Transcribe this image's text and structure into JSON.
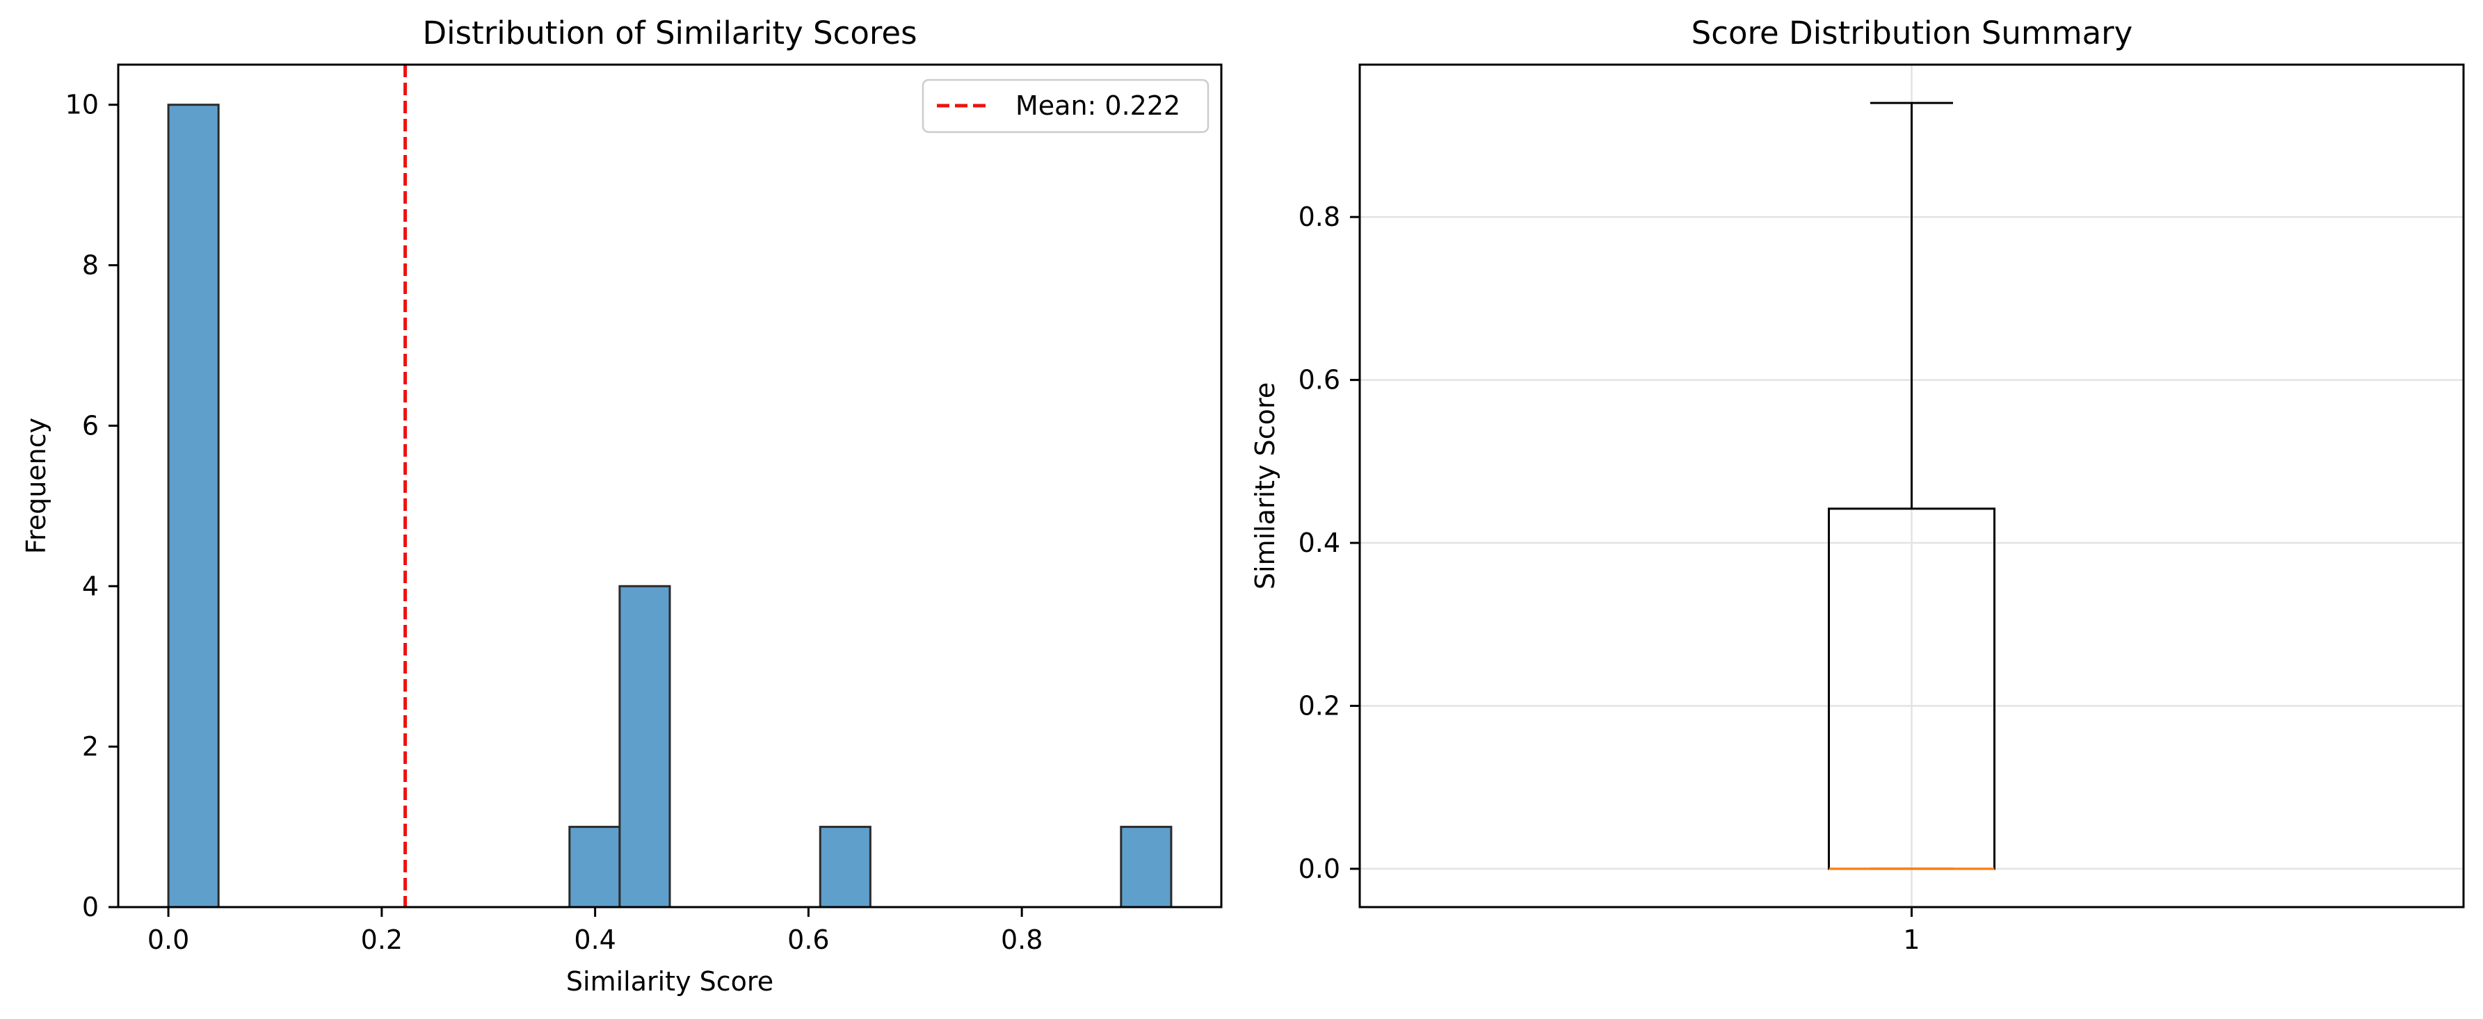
{
  "chart_data": [
    {
      "type": "histogram",
      "title": "Distribution of Similarity Scores",
      "xlabel": "Similarity Score",
      "ylabel": "Frequency",
      "xlim": [
        -0.047,
        0.987
      ],
      "ylim": [
        0,
        10.5
      ],
      "xticks": [
        0.0,
        0.2,
        0.4,
        0.6,
        0.8
      ],
      "xtick_labels": [
        "0.0",
        "0.2",
        "0.4",
        "0.6",
        "0.8"
      ],
      "yticks": [
        0,
        2,
        4,
        6,
        8,
        10
      ],
      "ytick_labels": [
        "0",
        "2",
        "4",
        "6",
        "8",
        "10"
      ],
      "bar_color": "#5f9fcc",
      "bar_edge_color": "#2b2b2b",
      "bins": [
        {
          "x0": 0.0,
          "x1": 0.047,
          "count": 10
        },
        {
          "x0": 0.047,
          "x1": 0.094,
          "count": 0
        },
        {
          "x0": 0.094,
          "x1": 0.141,
          "count": 0
        },
        {
          "x0": 0.141,
          "x1": 0.188,
          "count": 0
        },
        {
          "x0": 0.188,
          "x1": 0.235,
          "count": 0
        },
        {
          "x0": 0.235,
          "x1": 0.282,
          "count": 0
        },
        {
          "x0": 0.282,
          "x1": 0.329,
          "count": 0
        },
        {
          "x0": 0.329,
          "x1": 0.376,
          "count": 0
        },
        {
          "x0": 0.376,
          "x1": 0.423,
          "count": 1
        },
        {
          "x0": 0.423,
          "x1": 0.47,
          "count": 4
        },
        {
          "x0": 0.47,
          "x1": 0.517,
          "count": 0
        },
        {
          "x0": 0.517,
          "x1": 0.564,
          "count": 0
        },
        {
          "x0": 0.564,
          "x1": 0.611,
          "count": 0
        },
        {
          "x0": 0.611,
          "x1": 0.658,
          "count": 1
        },
        {
          "x0": 0.658,
          "x1": 0.705,
          "count": 0
        },
        {
          "x0": 0.705,
          "x1": 0.752,
          "count": 0
        },
        {
          "x0": 0.752,
          "x1": 0.799,
          "count": 0
        },
        {
          "x0": 0.799,
          "x1": 0.846,
          "count": 0
        },
        {
          "x0": 0.846,
          "x1": 0.893,
          "count": 0
        },
        {
          "x0": 0.893,
          "x1": 0.94,
          "count": 1
        }
      ],
      "mean_line": {
        "value": 0.222,
        "color": "#ee1111",
        "style": "dashed"
      },
      "legend": {
        "position": "top-right",
        "entries": [
          "Mean: 0.222"
        ]
      },
      "grid": false
    },
    {
      "type": "box",
      "title": "Score Distribution Summary",
      "xlabel": "",
      "ylabel": "Similarity Score",
      "xlim": [
        0.5,
        1.5
      ],
      "ylim": [
        -0.047,
        0.987
      ],
      "xticks": [
        1
      ],
      "xtick_labels": [
        "1"
      ],
      "yticks": [
        0.0,
        0.2,
        0.4,
        0.6,
        0.8
      ],
      "ytick_labels": [
        "0.0",
        "0.2",
        "0.4",
        "0.6",
        "0.8"
      ],
      "box": {
        "position": 1,
        "whisker_low": 0.0,
        "q1": 0.0,
        "median": 0.0,
        "q3": 0.442,
        "whisker_high": 0.94
      },
      "median_color": "#ff7f0e",
      "grid": true
    }
  ]
}
